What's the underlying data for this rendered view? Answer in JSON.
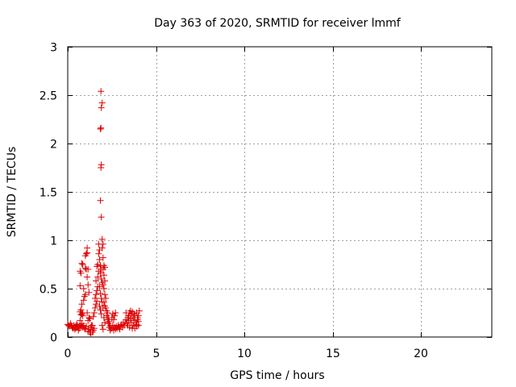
{
  "chart_data": {
    "type": "scatter",
    "title": "Day 363 of 2020, SRMTID for receiver lmmf",
    "xlabel": "GPS time / hours",
    "ylabel": "SRMTID / TECUs",
    "xlim": [
      0,
      24
    ],
    "ylim": [
      0,
      3
    ],
    "xticks": [
      0,
      5,
      10,
      15,
      20
    ],
    "yticks": [
      0,
      0.5,
      1,
      1.5,
      2,
      2.5,
      3
    ],
    "xtick_labels": [
      "0",
      "5",
      "10",
      "15",
      "20"
    ],
    "ytick_labels": [
      "0",
      "0.5",
      "1",
      "1.5",
      "2",
      "2.5",
      "3"
    ],
    "grid": true,
    "marker": "+",
    "color": "#dd0000",
    "series": [
      {
        "name": "SRMTID",
        "points": [
          [
            0.0,
            0.13
          ],
          [
            0.05,
            0.12
          ],
          [
            0.1,
            0.11
          ],
          [
            0.15,
            0.14
          ],
          [
            0.2,
            0.12
          ],
          [
            0.25,
            0.1
          ],
          [
            0.3,
            0.09
          ],
          [
            0.35,
            0.12
          ],
          [
            0.4,
            0.08
          ],
          [
            0.45,
            0.11
          ],
          [
            0.5,
            0.13
          ],
          [
            0.55,
            0.1
          ],
          [
            0.6,
            0.07
          ],
          [
            0.65,
            0.09
          ],
          [
            0.7,
            0.12
          ],
          [
            0.75,
            0.11
          ],
          [
            0.8,
            0.14
          ],
          [
            0.85,
            0.1
          ],
          [
            0.9,
            0.12
          ],
          [
            0.95,
            0.09
          ],
          [
            1.0,
            0.08
          ],
          [
            1.05,
            0.11
          ],
          [
            0.35,
            0.1
          ],
          [
            0.45,
            0.09
          ],
          [
            0.55,
            0.12
          ],
          [
            0.65,
            0.11
          ],
          [
            0.7,
            0.17
          ],
          [
            0.75,
            0.23
          ],
          [
            0.8,
            0.24
          ],
          [
            0.85,
            0.25
          ],
          [
            0.7,
            0.26
          ],
          [
            0.85,
            0.22
          ],
          [
            0.75,
            0.28
          ],
          [
            0.8,
            0.34
          ],
          [
            0.9,
            0.38
          ],
          [
            0.7,
            0.53
          ],
          [
            0.9,
            0.5
          ],
          [
            0.95,
            0.42
          ],
          [
            1.0,
            0.44
          ],
          [
            0.75,
            0.66
          ],
          [
            0.8,
            0.76
          ],
          [
            0.85,
            0.75
          ],
          [
            0.7,
            0.68
          ],
          [
            1.0,
            0.84
          ],
          [
            1.05,
            0.86
          ],
          [
            1.1,
            0.87
          ],
          [
            1.1,
            0.92
          ],
          [
            1.05,
            0.7
          ],
          [
            1.0,
            0.71
          ],
          [
            1.15,
            0.7
          ],
          [
            1.1,
            0.62
          ],
          [
            1.15,
            0.54
          ],
          [
            1.2,
            0.46
          ],
          [
            1.1,
            0.25
          ],
          [
            1.15,
            0.17
          ],
          [
            1.2,
            0.2
          ],
          [
            1.25,
            0.19
          ],
          [
            1.3,
            0.1
          ],
          [
            1.35,
            0.12
          ],
          [
            1.2,
            0.08
          ],
          [
            1.25,
            0.05
          ],
          [
            1.3,
            0.03
          ],
          [
            1.15,
            0.06
          ],
          [
            1.4,
            0.05
          ],
          [
            1.45,
            0.07
          ],
          [
            1.5,
            0.09
          ],
          [
            1.4,
            0.12
          ],
          [
            1.45,
            0.21
          ],
          [
            1.5,
            0.25
          ],
          [
            1.55,
            0.3
          ],
          [
            1.6,
            0.34
          ],
          [
            1.55,
            0.4
          ],
          [
            1.65,
            0.37
          ],
          [
            1.6,
            0.44
          ],
          [
            1.65,
            0.48
          ],
          [
            1.7,
            0.52
          ],
          [
            1.6,
            0.58
          ],
          [
            1.7,
            0.62
          ],
          [
            1.75,
            0.68
          ],
          [
            1.65,
            0.73
          ],
          [
            1.7,
            0.75
          ],
          [
            1.75,
            0.86
          ],
          [
            1.8,
            0.9
          ],
          [
            1.75,
            0.96
          ],
          [
            1.8,
            0.8
          ],
          [
            1.85,
            0.74
          ],
          [
            1.9,
            0.7
          ],
          [
            1.85,
            0.66
          ],
          [
            1.9,
            0.6
          ],
          [
            1.95,
            0.56
          ],
          [
            1.8,
            0.52
          ],
          [
            1.85,
            0.45
          ],
          [
            1.9,
            0.4
          ],
          [
            1.95,
            0.36
          ],
          [
            1.8,
            0.32
          ],
          [
            1.85,
            0.28
          ],
          [
            1.9,
            0.24
          ],
          [
            1.85,
            1.41
          ],
          [
            1.9,
            1.24
          ],
          [
            1.88,
            1.75
          ],
          [
            1.9,
            1.78
          ],
          [
            1.85,
            2.15
          ],
          [
            1.88,
            2.16
          ],
          [
            1.9,
            2.37
          ],
          [
            1.95,
            2.42
          ],
          [
            1.88,
            2.54
          ],
          [
            1.95,
            1.01
          ],
          [
            2.0,
            0.96
          ],
          [
            1.95,
            0.92
          ],
          [
            2.0,
            0.82
          ],
          [
            2.05,
            0.74
          ],
          [
            2.1,
            0.72
          ],
          [
            2.0,
            0.7
          ],
          [
            2.05,
            0.64
          ],
          [
            2.1,
            0.58
          ],
          [
            2.0,
            0.54
          ],
          [
            2.05,
            0.5
          ],
          [
            2.1,
            0.44
          ],
          [
            2.15,
            0.4
          ],
          [
            2.05,
            0.36
          ],
          [
            2.1,
            0.32
          ],
          [
            2.15,
            0.3
          ],
          [
            2.2,
            0.27
          ],
          [
            2.25,
            0.25
          ],
          [
            2.2,
            0.22
          ],
          [
            2.3,
            0.2
          ],
          [
            2.25,
            0.18
          ],
          [
            2.35,
            0.16
          ],
          [
            2.3,
            0.14
          ],
          [
            2.4,
            0.12
          ],
          [
            2.35,
            0.1
          ],
          [
            2.45,
            0.09
          ],
          [
            2.4,
            0.07
          ],
          [
            2.0,
            0.3
          ],
          [
            2.05,
            0.2
          ],
          [
            2.1,
            0.15
          ],
          [
            1.95,
            0.12
          ],
          [
            2.0,
            0.08
          ],
          [
            2.5,
            0.09
          ],
          [
            2.55,
            0.12
          ],
          [
            2.6,
            0.07
          ],
          [
            2.65,
            0.1
          ],
          [
            2.7,
            0.08
          ],
          [
            2.75,
            0.11
          ],
          [
            2.8,
            0.09
          ],
          [
            2.85,
            0.12
          ],
          [
            2.9,
            0.1
          ],
          [
            2.95,
            0.08
          ],
          [
            3.0,
            0.11
          ],
          [
            3.05,
            0.13
          ],
          [
            3.1,
            0.1
          ],
          [
            3.15,
            0.15
          ],
          [
            2.6,
            0.18
          ],
          [
            2.65,
            0.22
          ],
          [
            2.7,
            0.25
          ],
          [
            2.5,
            0.2
          ],
          [
            2.55,
            0.24
          ],
          [
            3.2,
            0.12
          ],
          [
            3.25,
            0.15
          ],
          [
            3.3,
            0.18
          ],
          [
            3.35,
            0.14
          ],
          [
            3.4,
            0.2
          ],
          [
            3.45,
            0.22
          ],
          [
            3.5,
            0.25
          ],
          [
            3.55,
            0.27
          ],
          [
            3.6,
            0.24
          ],
          [
            3.65,
            0.26
          ],
          [
            3.7,
            0.2
          ],
          [
            3.75,
            0.17
          ],
          [
            3.8,
            0.22
          ],
          [
            3.85,
            0.15
          ],
          [
            3.9,
            0.13
          ],
          [
            3.95,
            0.18
          ],
          [
            4.0,
            0.22
          ],
          [
            4.05,
            0.27
          ],
          [
            3.9,
            0.25
          ],
          [
            3.95,
            0.2
          ],
          [
            4.0,
            0.16
          ],
          [
            3.3,
            0.25
          ],
          [
            3.4,
            0.12
          ],
          [
            3.5,
            0.1
          ],
          [
            3.6,
            0.15
          ],
          [
            3.7,
            0.12
          ],
          [
            3.8,
            0.09
          ],
          [
            3.9,
            0.11
          ],
          [
            4.0,
            0.12
          ],
          [
            3.45,
            0.17
          ],
          [
            3.55,
            0.19
          ],
          [
            3.65,
            0.09
          ],
          [
            3.75,
            0.24
          ]
        ]
      }
    ]
  }
}
